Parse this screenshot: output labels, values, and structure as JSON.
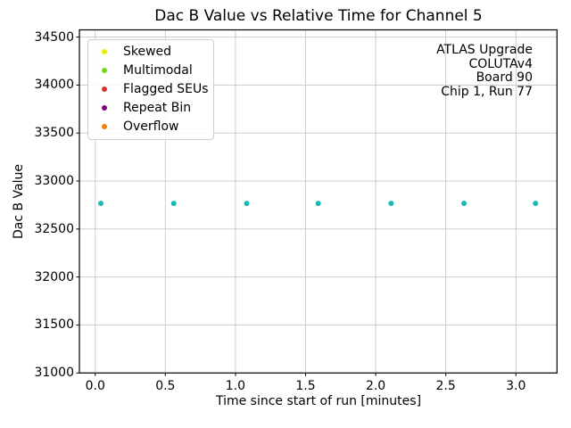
{
  "chart_data": {
    "type": "scatter",
    "title": "Dac B Value vs Relative Time for Channel 5",
    "xlabel": "Time since start of run [minutes]",
    "ylabel": "Dac B Value",
    "xlim": [
      -0.113,
      3.293
    ],
    "ylim": [
      31000,
      34575
    ],
    "xticks": [
      0.0,
      0.5,
      1.0,
      1.5,
      2.0,
      2.5,
      3.0
    ],
    "xtick_labels": [
      "0.0",
      "0.5",
      "1.0",
      "1.5",
      "2.0",
      "2.5",
      "3.0"
    ],
    "yticks": [
      31000,
      31500,
      32000,
      32500,
      33000,
      33500,
      34000,
      34500
    ],
    "ytick_labels": [
      "31000",
      "31500",
      "32000",
      "32500",
      "33000",
      "33500",
      "34000",
      "34500"
    ],
    "grid": true,
    "grid_color": "#c6c6c6",
    "spine_color": "#000000",
    "series": [
      {
        "name": "dac-b-readings",
        "marker": "dot",
        "color": "#1cb8b2",
        "x": [
          0.04,
          0.56,
          1.08,
          1.59,
          2.11,
          2.63,
          3.14
        ],
        "y": [
          32767,
          32767,
          32767,
          32767,
          32767,
          32767,
          32767
        ]
      }
    ],
    "legend": {
      "position": "upper-left",
      "entries": [
        {
          "label": "Skewed",
          "color": "#ebeb00"
        },
        {
          "label": "Multimodal",
          "color": "#70d819"
        },
        {
          "label": "Flagged SEUs",
          "color": "#d62f2f"
        },
        {
          "label": "Repeat Bin",
          "color": "#800080"
        },
        {
          "label": "Overflow",
          "color": "#f57d0e"
        }
      ]
    },
    "annotation": {
      "align": "right",
      "lines": [
        "ATLAS Upgrade",
        "COLUTAv4",
        "Board 90",
        "Chip 1, Run 77"
      ]
    }
  }
}
